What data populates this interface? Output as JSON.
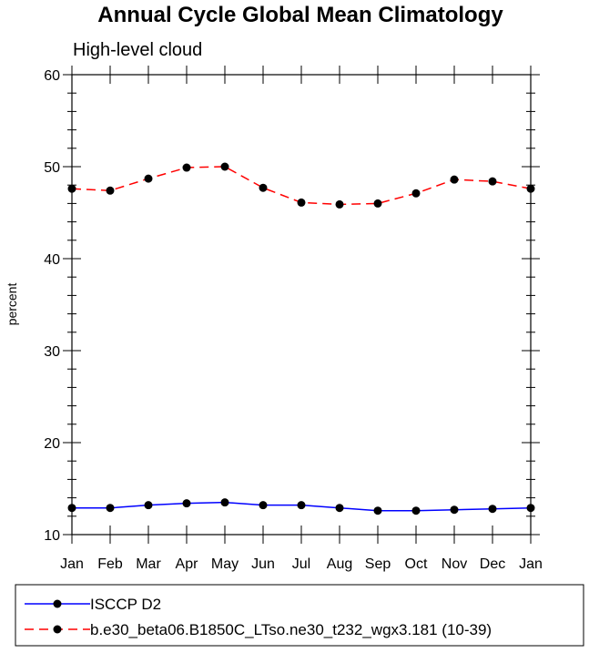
{
  "chart_data": {
    "type": "line",
    "title": "Annual Cycle Global Mean Climatology",
    "subtitle": "High-level cloud",
    "ylabel": "percent",
    "xlabel": "",
    "categories": [
      "Jan",
      "Feb",
      "Mar",
      "Apr",
      "May",
      "Jun",
      "Jul",
      "Aug",
      "Sep",
      "Oct",
      "Nov",
      "Dec",
      "Jan"
    ],
    "ylim": [
      10,
      60
    ],
    "yticks": [
      "10",
      "20",
      "30",
      "40",
      "50",
      "60"
    ],
    "grid": false,
    "legend_position": "bottom",
    "series": [
      {
        "name": "ISCCP D2",
        "values": [
          12.9,
          12.9,
          13.2,
          13.4,
          13.5,
          13.2,
          13.2,
          12.9,
          12.6,
          12.6,
          12.7,
          12.8,
          12.9
        ],
        "color": "#0000ff",
        "dash": "solid"
      },
      {
        "name": "b.e30_beta06.B1850C_LTso.ne30_t232_wgx3.181 (10-39)",
        "values": [
          47.6,
          47.4,
          48.7,
          49.9,
          50.0,
          47.7,
          46.1,
          45.9,
          46.0,
          47.1,
          48.6,
          48.4,
          47.6
        ],
        "color": "#ff0000",
        "dash": "dashed"
      }
    ],
    "marker_color": "#000000"
  }
}
